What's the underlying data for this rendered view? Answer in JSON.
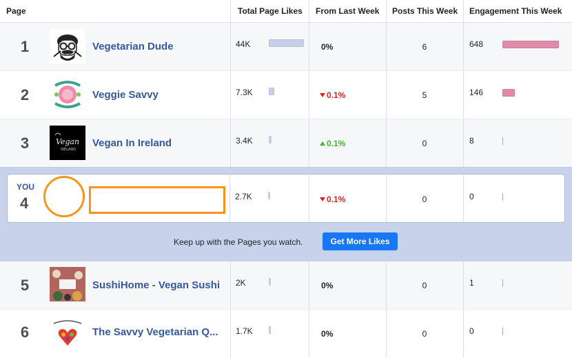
{
  "header": {
    "page": "Page",
    "total_likes": "Total Page Likes",
    "from_last_week": "From Last Week",
    "posts": "Posts This Week",
    "engagement": "Engagement This Week"
  },
  "rows": [
    {
      "rank": "1",
      "name": "Vegetarian Dude",
      "likes": "44K",
      "likes_frac": 1.0,
      "change": "0%",
      "change_dir": "neutral",
      "posts": "6",
      "engagement": "648",
      "eng_frac": 1.0,
      "icon": "vegetarian-dude-logo"
    },
    {
      "rank": "2",
      "name": "Veggie Savvy",
      "likes": "7.3K",
      "likes_frac": 0.166,
      "change": "0.1%",
      "change_dir": "down",
      "posts": "5",
      "engagement": "146",
      "eng_frac": 0.225,
      "icon": "veggie-savvy-logo"
    },
    {
      "rank": "3",
      "name": "Vegan In Ireland",
      "likes": "3.4K",
      "likes_frac": 0.077,
      "change": "0.1%",
      "change_dir": "up",
      "posts": "0",
      "engagement": "8",
      "eng_frac": 0.012,
      "icon": "vegan-in-ireland-logo",
      "logo_text": "Vegan",
      "logo_sub": "IRELAND"
    },
    {
      "rank": "5",
      "name": "SushiHome - Vegan Sushi",
      "likes": "2K",
      "likes_frac": 0.045,
      "change": "0%",
      "change_dir": "neutral",
      "posts": "0",
      "engagement": "1",
      "eng_frac": 0.002,
      "icon": "sushihome-logo"
    },
    {
      "rank": "6",
      "name": "The Savvy Vegetarian Q...",
      "likes": "1.7K",
      "likes_frac": 0.039,
      "change": "0%",
      "change_dir": "neutral",
      "posts": "0",
      "engagement": "0",
      "eng_frac": 0.0,
      "icon": "savvy-vegetarian-logo"
    }
  ],
  "you": {
    "label": "YOU",
    "rank": "4",
    "likes": "2.7K",
    "likes_frac": 0.061,
    "change": "0.1%",
    "change_dir": "down",
    "posts": "0",
    "engagement": "0",
    "eng_frac": 0.0
  },
  "cta": {
    "text": "Keep up with the Pages you watch.",
    "button": "Get More Likes",
    "button_color": "#1877f2"
  },
  "colors": {
    "link": "#365899",
    "likes_bar": "#c5d0e6",
    "engagement_bar": "#df8ca8",
    "highlight": "#f7941d",
    "down": "#e02020",
    "up": "#42b72a"
  }
}
